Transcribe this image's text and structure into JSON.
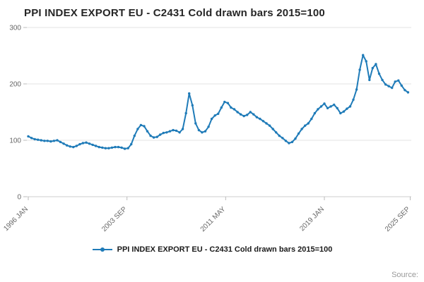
{
  "header": {
    "title": "PPI INDEX EXPORT EU - C2431 Cold drawn bars 2015=100"
  },
  "legend": {
    "label": "PPI INDEX EXPORT EU - C2431 Cold drawn bars 2015=100"
  },
  "footer": {
    "source_label": "Source:"
  },
  "axes": {
    "y_tick_labels": [
      "300",
      "200",
      "100",
      "0"
    ],
    "x_tick_labels": [
      "1996 JAN",
      "2003 SEP",
      "2011 MAY",
      "2019 JAN",
      "2025 SEP"
    ]
  },
  "chart_data": {
    "type": "line",
    "title": "PPI INDEX EXPORT EU - C2431 Cold drawn bars 2015=100",
    "xlabel": "",
    "ylabel": "",
    "ylim": [
      0,
      300
    ],
    "xlim": [
      1996.0,
      2025.75
    ],
    "y_ticks": [
      0,
      100,
      200,
      300
    ],
    "x_tick_values": [
      1996.0,
      2003.667,
      2011.333,
      2019.0,
      2025.667
    ],
    "x_tick_labels": [
      "1996 JAN",
      "2003 SEP",
      "2011 MAY",
      "2019 JAN",
      "2025 SEP"
    ],
    "grid": "horizontal",
    "legend_position": "bottom",
    "color": "#1f7bb8",
    "series": [
      {
        "name": "PPI INDEX EXPORT EU - C2431 Cold drawn bars 2015=100",
        "x_start": 1996.0,
        "x_step": 0.25,
        "x_unit": "decimal-year (quarterly)",
        "values": [
          107,
          104,
          102,
          101,
          100,
          99,
          99,
          98,
          99,
          100,
          97,
          94,
          91,
          89,
          88,
          90,
          93,
          95,
          96,
          94,
          92,
          90,
          88,
          87,
          86,
          86,
          87,
          88,
          88,
          87,
          85,
          86,
          93,
          108,
          120,
          127,
          125,
          116,
          108,
          105,
          106,
          110,
          113,
          114,
          116,
          118,
          117,
          114,
          120,
          148,
          183,
          162,
          130,
          118,
          114,
          116,
          124,
          138,
          144,
          147,
          158,
          168,
          166,
          158,
          155,
          150,
          146,
          143,
          145,
          150,
          146,
          141,
          138,
          134,
          130,
          126,
          120,
          114,
          108,
          104,
          99,
          95,
          97,
          103,
          112,
          120,
          126,
          130,
          138,
          148,
          155,
          160,
          165,
          157,
          160,
          163,
          157,
          148,
          151,
          156,
          160,
          172,
          190,
          225,
          251,
          240,
          207,
          228,
          235,
          218,
          207,
          199,
          196,
          193,
          204,
          206,
          197,
          189,
          185
        ]
      }
    ]
  }
}
